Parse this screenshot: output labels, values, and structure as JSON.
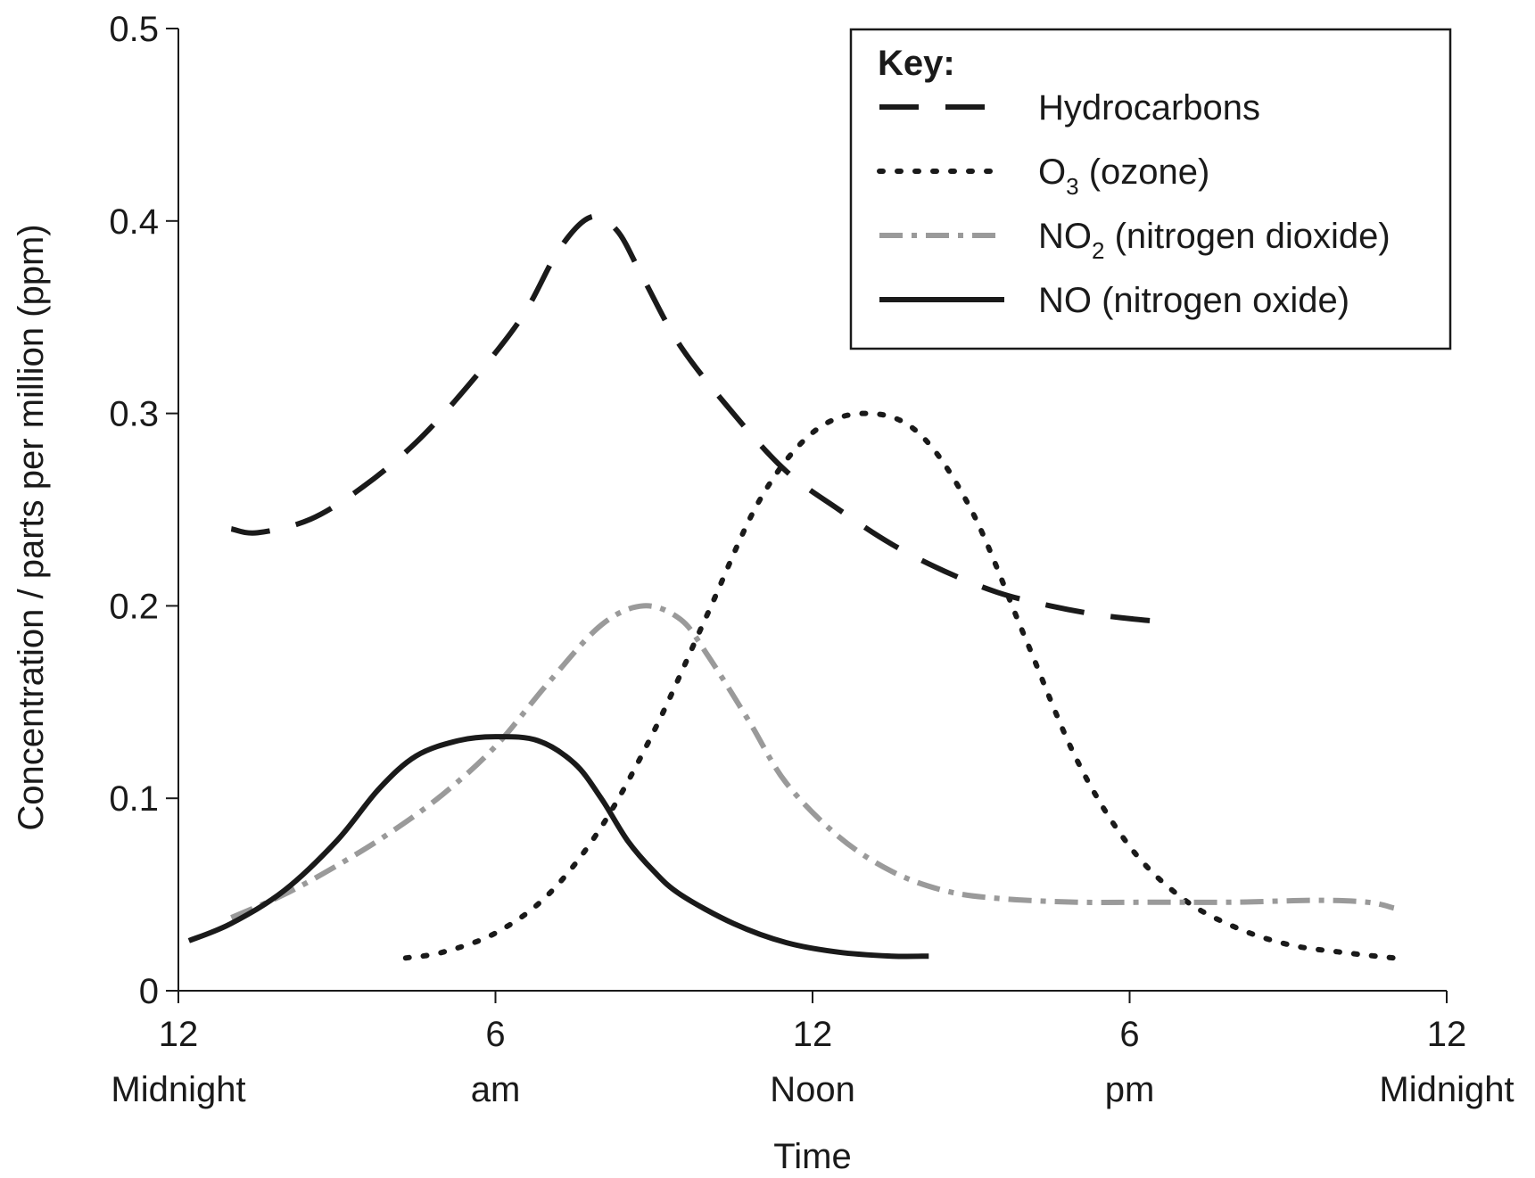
{
  "chart_data": {
    "type": "line",
    "xlabel": "Time",
    "ylabel": "Concentration / parts per million (ppm)",
    "xlim": [
      0,
      24
    ],
    "ylim": [
      0,
      0.5
    ],
    "x_ticks": [
      {
        "value": 0,
        "line1": "12",
        "line2": "Midnight"
      },
      {
        "value": 6,
        "line1": "6",
        "line2": "am"
      },
      {
        "value": 12,
        "line1": "12",
        "line2": "Noon"
      },
      {
        "value": 18,
        "line1": "6",
        "line2": "pm"
      },
      {
        "value": 24,
        "line1": "12",
        "line2": "Midnight"
      }
    ],
    "y_ticks": [
      {
        "value": 0,
        "label": "0"
      },
      {
        "value": 0.1,
        "label": "0.1"
      },
      {
        "value": 0.2,
        "label": "0.2"
      },
      {
        "value": 0.3,
        "label": "0.3"
      },
      {
        "value": 0.4,
        "label": "0.4"
      },
      {
        "value": 0.5,
        "label": "0.5"
      }
    ],
    "grid": false,
    "legend": {
      "title": "Key:",
      "placement": "top-right"
    },
    "series": [
      {
        "name": "Hydrocarbons",
        "label_main": "Hydrocarbons",
        "label_sub": "",
        "label_rest": "",
        "style": "dashed",
        "color": "#1a1a1a",
        "points": [
          [
            1.0,
            0.24
          ],
          [
            1.5,
            0.238
          ],
          [
            2.5,
            0.245
          ],
          [
            3.5,
            0.262
          ],
          [
            4.5,
            0.285
          ],
          [
            5.5,
            0.315
          ],
          [
            6.5,
            0.35
          ],
          [
            7.2,
            0.385
          ],
          [
            7.8,
            0.402
          ],
          [
            8.3,
            0.395
          ],
          [
            8.8,
            0.37
          ],
          [
            9.5,
            0.335
          ],
          [
            10.5,
            0.3
          ],
          [
            11.5,
            0.27
          ],
          [
            12.5,
            0.25
          ],
          [
            13.5,
            0.232
          ],
          [
            14.5,
            0.218
          ],
          [
            15.5,
            0.207
          ],
          [
            16.5,
            0.2
          ],
          [
            17.5,
            0.195
          ],
          [
            18.5,
            0.192
          ]
        ]
      },
      {
        "name": "O3 (ozone)",
        "label_main": "O",
        "label_sub": "3",
        "label_rest": " (ozone)",
        "style": "dotted",
        "color": "#1a1a1a",
        "points": [
          [
            4.3,
            0.017
          ],
          [
            5.0,
            0.02
          ],
          [
            6.0,
            0.03
          ],
          [
            7.0,
            0.05
          ],
          [
            8.0,
            0.085
          ],
          [
            9.0,
            0.135
          ],
          [
            10.0,
            0.195
          ],
          [
            11.0,
            0.255
          ],
          [
            12.0,
            0.29
          ],
          [
            13.0,
            0.3
          ],
          [
            14.0,
            0.29
          ],
          [
            15.0,
            0.25
          ],
          [
            16.0,
            0.185
          ],
          [
            17.0,
            0.12
          ],
          [
            18.0,
            0.075
          ],
          [
            19.0,
            0.048
          ],
          [
            20.0,
            0.033
          ],
          [
            21.0,
            0.024
          ],
          [
            22.0,
            0.02
          ],
          [
            23.0,
            0.017
          ]
        ]
      },
      {
        "name": "NO2 (nitrogen dioxide)",
        "label_main": "NO",
        "label_sub": "2",
        "label_rest": " (nitrogen dioxide)",
        "style": "dash-dot",
        "color": "#9a9a9a",
        "points": [
          [
            1.0,
            0.038
          ],
          [
            2.0,
            0.05
          ],
          [
            3.0,
            0.065
          ],
          [
            4.0,
            0.082
          ],
          [
            5.0,
            0.102
          ],
          [
            6.0,
            0.127
          ],
          [
            7.0,
            0.16
          ],
          [
            8.0,
            0.19
          ],
          [
            8.8,
            0.2
          ],
          [
            9.5,
            0.193
          ],
          [
            10.0,
            0.175
          ],
          [
            10.8,
            0.14
          ],
          [
            11.5,
            0.108
          ],
          [
            12.5,
            0.08
          ],
          [
            13.5,
            0.062
          ],
          [
            14.5,
            0.052
          ],
          [
            15.5,
            0.048
          ],
          [
            17.0,
            0.046
          ],
          [
            18.5,
            0.046
          ],
          [
            20.0,
            0.046
          ],
          [
            21.5,
            0.047
          ],
          [
            22.5,
            0.046
          ],
          [
            23.0,
            0.043
          ]
        ]
      },
      {
        "name": "NO (nitrogen oxide)",
        "label_main": "NO",
        "label_sub": "",
        "label_rest": " (nitrogen oxide)",
        "style": "solid",
        "color": "#1a1a1a",
        "points": [
          [
            0.2,
            0.026
          ],
          [
            1.0,
            0.035
          ],
          [
            2.0,
            0.052
          ],
          [
            3.0,
            0.078
          ],
          [
            3.8,
            0.105
          ],
          [
            4.5,
            0.122
          ],
          [
            5.3,
            0.13
          ],
          [
            6.0,
            0.132
          ],
          [
            6.8,
            0.13
          ],
          [
            7.5,
            0.118
          ],
          [
            8.0,
            0.1
          ],
          [
            8.5,
            0.078
          ],
          [
            9.0,
            0.062
          ],
          [
            9.5,
            0.05
          ],
          [
            10.5,
            0.035
          ],
          [
            11.5,
            0.025
          ],
          [
            12.5,
            0.02
          ],
          [
            13.5,
            0.018
          ],
          [
            14.2,
            0.018
          ]
        ]
      }
    ]
  }
}
